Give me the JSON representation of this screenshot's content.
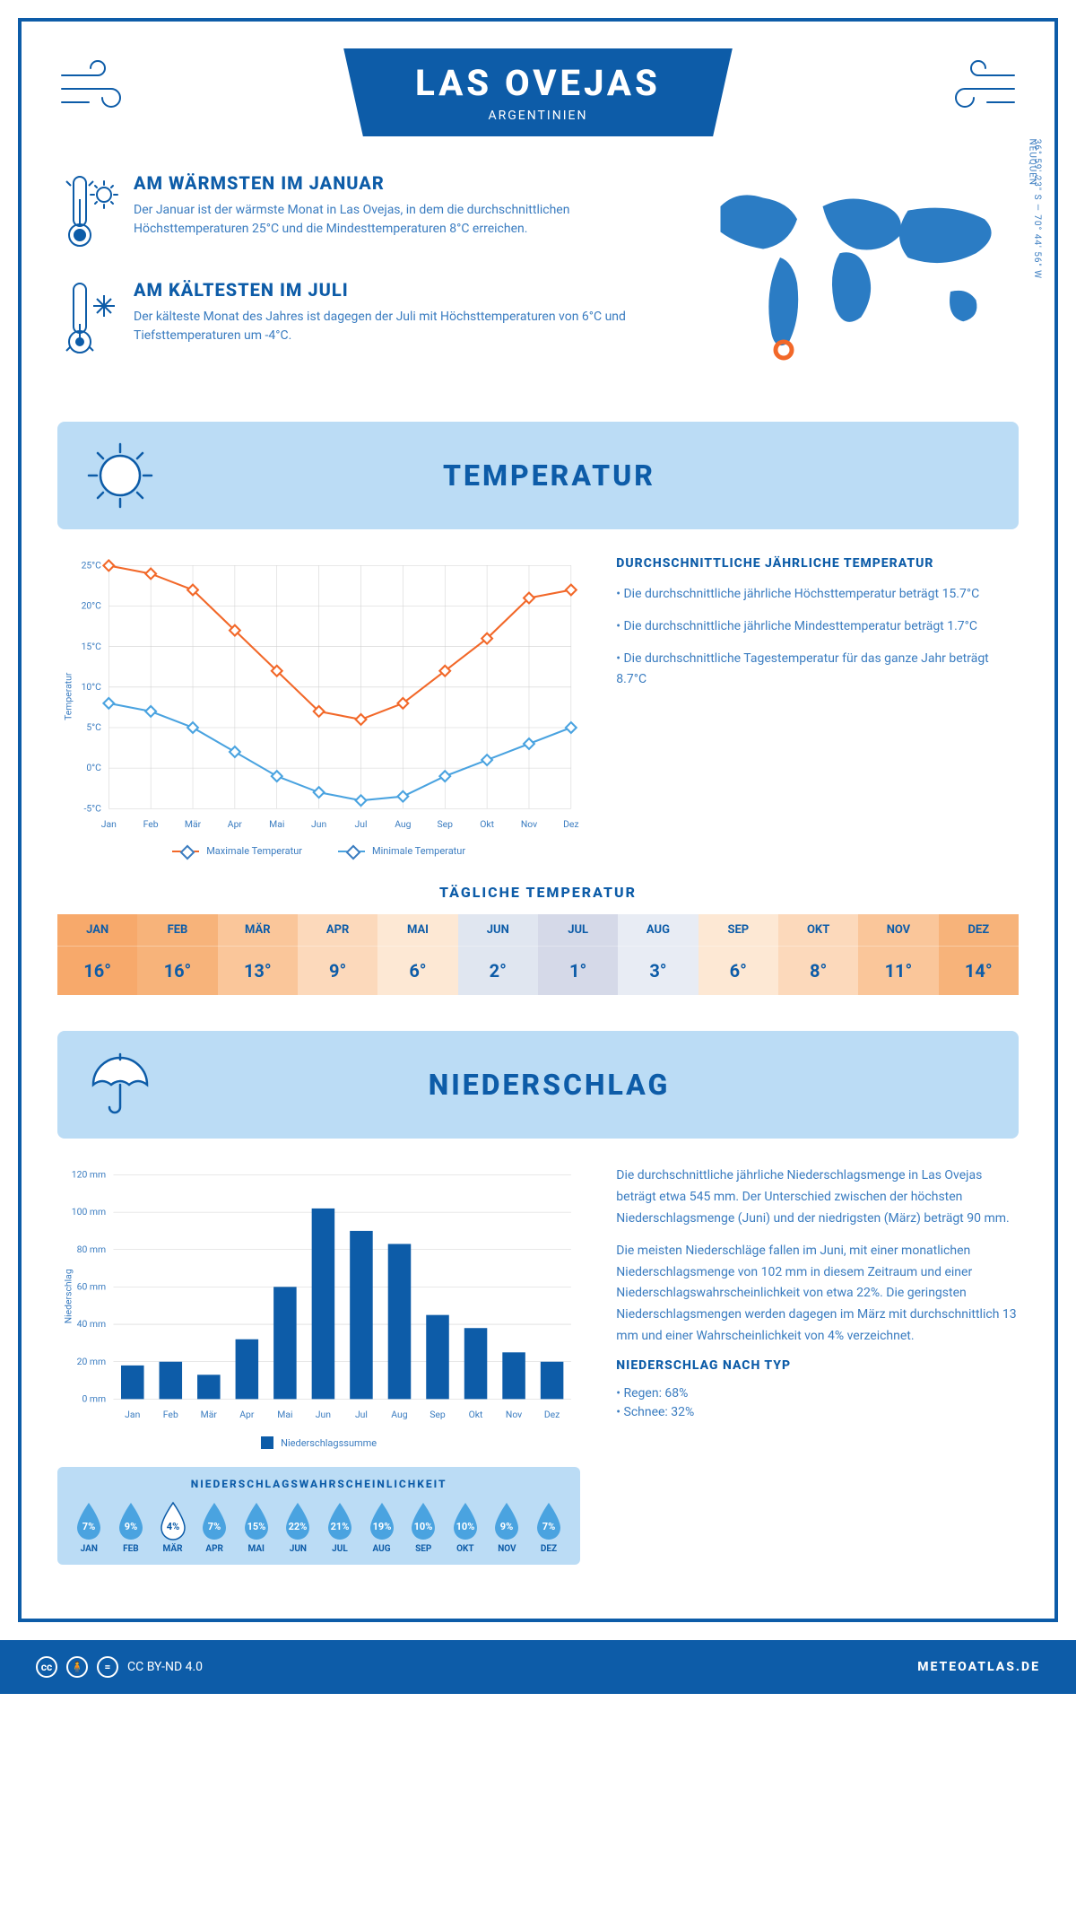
{
  "colors": {
    "primary": "#0d5ca8",
    "light_blue": "#bbdcf5",
    "grid": "#d0d0d0",
    "text_light": "#3a7cc0",
    "orange_line": "#f26829",
    "blue_line": "#4aa3e0"
  },
  "header": {
    "title": "LAS OVEJAS",
    "country": "ARGENTINIEN"
  },
  "location": {
    "region": "NEUQUÉN",
    "coords": "36° 59' 23\" S — 70° 44' 56\" W"
  },
  "warm": {
    "title": "AM WÄRMSTEN IM JANUAR",
    "text": "Der Januar ist der wärmste Monat in Las Ovejas, in dem die durchschnittlichen Höchsttemperaturen 25°C und die Mindesttemperaturen 8°C erreichen."
  },
  "cold": {
    "title": "AM KÄLTESTEN IM JULI",
    "text": "Der kälteste Monat des Jahres ist dagegen der Juli mit Höchsttemperaturen von 6°C und Tiefsttemperaturen um -4°C."
  },
  "temp_section": {
    "title": "TEMPERATUR",
    "chart": {
      "type": "line",
      "months": [
        "Jan",
        "Feb",
        "Mär",
        "Apr",
        "Mai",
        "Jun",
        "Jul",
        "Aug",
        "Sep",
        "Okt",
        "Nov",
        "Dez"
      ],
      "ylabel": "Temperatur",
      "ylim": [
        -5,
        25
      ],
      "ytick_step": 5,
      "ytick_suffix": "°C",
      "series": [
        {
          "name": "Maximale Temperatur",
          "color": "#f26829",
          "values": [
            25,
            24,
            22,
            17,
            12,
            7,
            6,
            8,
            12,
            16,
            21,
            22
          ]
        },
        {
          "name": "Minimale Temperatur",
          "color": "#4aa3e0",
          "values": [
            8,
            7,
            5,
            2,
            -1,
            -3,
            -4,
            -3.5,
            -1,
            1,
            3,
            5
          ]
        }
      ]
    },
    "side": {
      "title": "DURCHSCHNITTLICHE JÄHRLICHE TEMPERATUR",
      "bullets": [
        "Die durchschnittliche jährliche Höchsttemperatur beträgt 15.7°C",
        "Die durchschnittliche jährliche Mindesttemperatur beträgt 1.7°C",
        "Die durchschnittliche Tagestemperatur für das ganze Jahr beträgt 8.7°C"
      ]
    },
    "daily": {
      "title": "TÄGLICHE TEMPERATUR",
      "months": [
        "JAN",
        "FEB",
        "MÄR",
        "APR",
        "MAI",
        "JUN",
        "JUL",
        "AUG",
        "SEP",
        "OKT",
        "NOV",
        "DEZ"
      ],
      "values": [
        "16°",
        "16°",
        "13°",
        "9°",
        "6°",
        "2°",
        "1°",
        "3°",
        "6°",
        "8°",
        "11°",
        "14°"
      ],
      "colors": [
        "#f7a96b",
        "#f7b37a",
        "#fac69a",
        "#fcd9bb",
        "#fde8d4",
        "#e0e6f0",
        "#d5d9e8",
        "#e8ecf4",
        "#fde8d4",
        "#fcd9bb",
        "#fac69a",
        "#f7b37a"
      ]
    }
  },
  "precip_section": {
    "title": "NIEDERSCHLAG",
    "chart": {
      "type": "bar",
      "months": [
        "Jan",
        "Feb",
        "Mär",
        "Apr",
        "Mai",
        "Jun",
        "Jul",
        "Aug",
        "Sep",
        "Okt",
        "Nov",
        "Dez"
      ],
      "ylabel": "Niederschlag",
      "ylim": [
        0,
        120
      ],
      "ytick_step": 20,
      "ytick_suffix": " mm",
      "values": [
        18,
        20,
        13,
        32,
        60,
        102,
        90,
        83,
        45,
        38,
        25,
        20
      ],
      "bar_color": "#0d5ca8",
      "legend": "Niederschlagssumme"
    },
    "text1": "Die durchschnittliche jährliche Niederschlagsmenge in Las Ovejas beträgt etwa 545 mm. Der Unterschied zwischen der höchsten Niederschlagsmenge (Juni) und der niedrigsten (März) beträgt 90 mm.",
    "text2": "Die meisten Niederschläge fallen im Juni, mit einer monatlichen Niederschlagsmenge von 102 mm in diesem Zeitraum und einer Niederschlagswahrscheinlichkeit von etwa 22%. Die geringsten Niederschlagsmengen werden dagegen im März mit durchschnittlich 13 mm und einer Wahrscheinlichkeit von 4% verzeichnet.",
    "type_title": "NIEDERSCHLAG NACH TYP",
    "types": [
      "Regen: 68%",
      "Schnee: 32%"
    ],
    "prob": {
      "title": "NIEDERSCHLAGSWAHRSCHEINLICHKEIT",
      "months": [
        "JAN",
        "FEB",
        "MÄR",
        "APR",
        "MAI",
        "JUN",
        "JUL",
        "AUG",
        "SEP",
        "OKT",
        "NOV",
        "DEZ"
      ],
      "values": [
        "7%",
        "9%",
        "4%",
        "7%",
        "15%",
        "22%",
        "21%",
        "19%",
        "10%",
        "10%",
        "9%",
        "7%"
      ],
      "min_index": 2,
      "drop_color": "#4aa3e0",
      "drop_min_color": "#ffffff"
    }
  },
  "footer": {
    "license": "CC BY-ND 4.0",
    "brand": "METEOATLAS.DE"
  }
}
